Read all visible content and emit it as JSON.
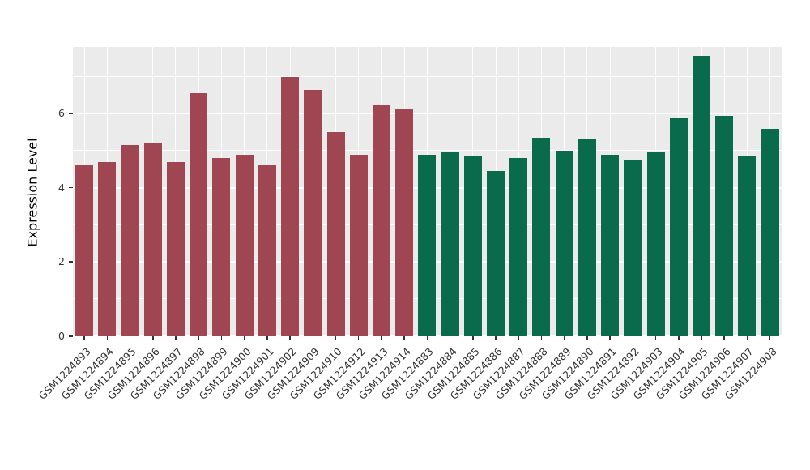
{
  "chart_data": {
    "type": "bar",
    "title": "",
    "xlabel": "",
    "ylabel": "Expression Level",
    "ylim": [
      0,
      7.8
    ],
    "yticks": [
      0,
      2,
      4,
      6
    ],
    "minor_gridlines": [
      1,
      3,
      5,
      7
    ],
    "panel_background": "#ebebeb",
    "grid_color": "#ffffff",
    "legend": "none",
    "group_colors": {
      "red": "#a04552",
      "green": "#0a6b4c"
    },
    "bars": [
      {
        "label": "GSM1224893",
        "value": 4.6,
        "group": "red"
      },
      {
        "label": "GSM1224894",
        "value": 4.7,
        "group": "red"
      },
      {
        "label": "GSM1224895",
        "value": 5.15,
        "group": "red"
      },
      {
        "label": "GSM1224896",
        "value": 5.2,
        "group": "red"
      },
      {
        "label": "GSM1224897",
        "value": 4.7,
        "group": "red"
      },
      {
        "label": "GSM1224898",
        "value": 6.55,
        "group": "red"
      },
      {
        "label": "GSM1224899",
        "value": 4.8,
        "group": "red"
      },
      {
        "label": "GSM1224900",
        "value": 4.9,
        "group": "red"
      },
      {
        "label": "GSM1224901",
        "value": 4.6,
        "group": "red"
      },
      {
        "label": "GSM1224902",
        "value": 7.0,
        "group": "red"
      },
      {
        "label": "GSM1224909",
        "value": 6.65,
        "group": "red"
      },
      {
        "label": "GSM1224910",
        "value": 5.5,
        "group": "red"
      },
      {
        "label": "GSM1224912",
        "value": 4.9,
        "group": "red"
      },
      {
        "label": "GSM1224913",
        "value": 6.25,
        "group": "red"
      },
      {
        "label": "GSM1224914",
        "value": 6.15,
        "group": "red"
      },
      {
        "label": "GSM1224883",
        "value": 4.9,
        "group": "green"
      },
      {
        "label": "GSM1224884",
        "value": 4.95,
        "group": "green"
      },
      {
        "label": "GSM1224885",
        "value": 4.85,
        "group": "green"
      },
      {
        "label": "GSM1224886",
        "value": 4.45,
        "group": "green"
      },
      {
        "label": "GSM1224887",
        "value": 4.8,
        "group": "green"
      },
      {
        "label": "GSM1224888",
        "value": 5.35,
        "group": "green"
      },
      {
        "label": "GSM1224889",
        "value": 5.0,
        "group": "green"
      },
      {
        "label": "GSM1224890",
        "value": 5.3,
        "group": "green"
      },
      {
        "label": "GSM1224891",
        "value": 4.9,
        "group": "green"
      },
      {
        "label": "GSM1224892",
        "value": 4.75,
        "group": "green"
      },
      {
        "label": "GSM1224903",
        "value": 4.95,
        "group": "green"
      },
      {
        "label": "GSM1224904",
        "value": 5.9,
        "group": "green"
      },
      {
        "label": "GSM1224905",
        "value": 7.55,
        "group": "green"
      },
      {
        "label": "GSM1224906",
        "value": 5.95,
        "group": "green"
      },
      {
        "label": "GSM1224907",
        "value": 4.85,
        "group": "green"
      },
      {
        "label": "GSM1224908",
        "value": 5.6,
        "group": "green"
      }
    ]
  }
}
